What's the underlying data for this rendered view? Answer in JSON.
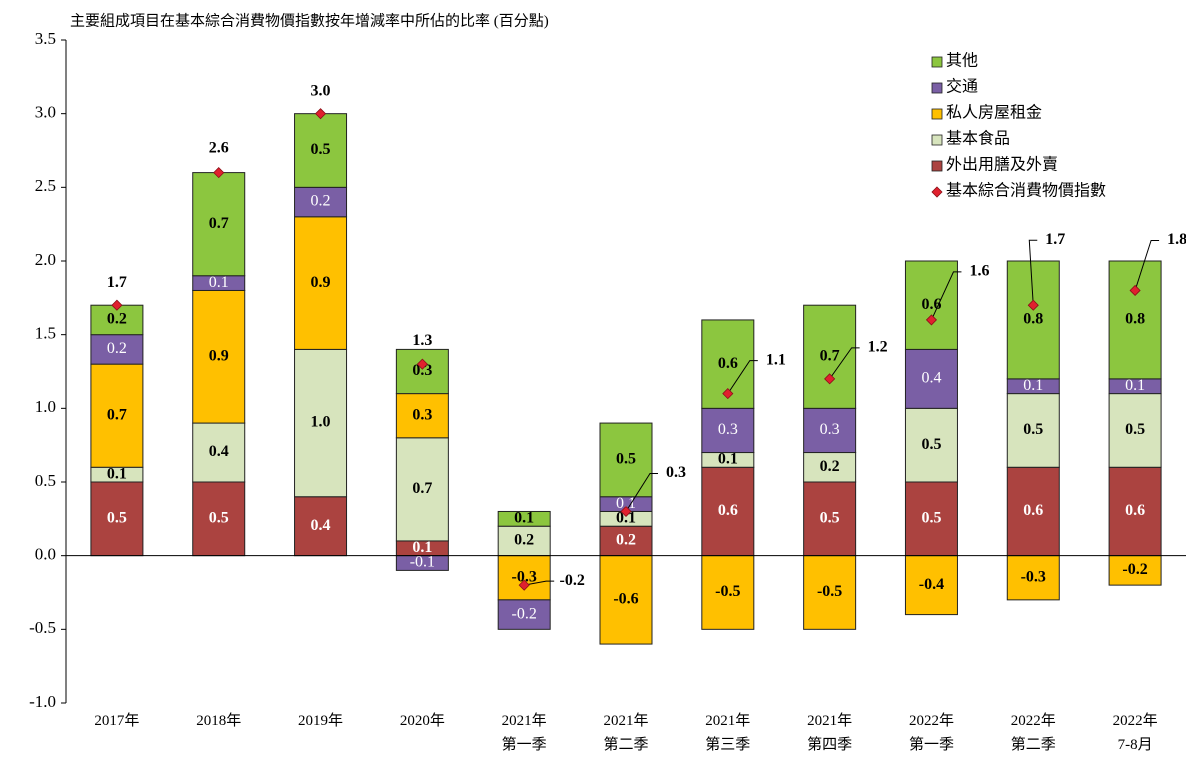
{
  "chart_data": {
    "type": "stacked_bar",
    "title": "主要組成項目在基本綜合消費物價指數按年增減率中所佔的比率 (百分點)",
    "categories": [
      "2017年",
      "2018年",
      "2019年",
      "2020年",
      "2021年\n第一季",
      "2021年\n第二季",
      "2021年\n第三季",
      "2021年\n第四季",
      "2022年\n第一季",
      "2022年\n第二季",
      "2022年\n7-8月"
    ],
    "series": [
      {
        "name": "外出用膳及外賣",
        "color": "#ab4340",
        "label_color": "#ffffff",
        "values": [
          0.5,
          0.5,
          0.4,
          0.1,
          null,
          0.2,
          0.6,
          0.5,
          0.5,
          0.6,
          0.6
        ],
        "value_labels": [
          "0.5",
          "0.5",
          "0.4",
          "0.1",
          null,
          "0.2",
          "0.6",
          "0.5",
          "0.5",
          "0.6",
          "0.6"
        ]
      },
      {
        "name": "基本食品",
        "color": "#d7e4bd",
        "label_color": "#000000",
        "values": [
          0.1,
          0.4,
          1.0,
          0.7,
          0.2,
          0.1,
          0.1,
          0.2,
          0.5,
          0.5,
          0.5
        ],
        "value_labels": [
          "0.1",
          "0.4",
          "1.0",
          "0.7",
          "0.2",
          "0.1",
          "0.1",
          "0.2",
          "0.5",
          "0.5",
          "0.5"
        ]
      },
      {
        "name": "私人房屋租金",
        "color": "#ffc000",
        "label_color": "#000000",
        "values": [
          0.7,
          0.9,
          0.9,
          0.3,
          -0.3,
          -0.6,
          -0.5,
          -0.5,
          -0.4,
          -0.3,
          -0.2
        ],
        "value_labels": [
          "0.7",
          "0.9",
          "0.9",
          "0.3",
          "-0.3",
          "-0.6",
          "-0.5",
          "-0.5",
          "-0.4",
          "-0.3",
          "-0.2"
        ]
      },
      {
        "name": "交通",
        "color": "#7a5fa5",
        "label_color": "#ffffff",
        "values": [
          0.2,
          0.1,
          0.2,
          -0.1,
          -0.2,
          0.1,
          0.3,
          0.3,
          0.4,
          0.1,
          0.1
        ],
        "value_labels": [
          "0.2",
          "0.1",
          "0.2",
          "-0.1",
          "-0.2",
          "0.1",
          "0.3",
          "0.3",
          "0.4",
          "0.1",
          "0.1"
        ]
      },
      {
        "name": "其他",
        "color": "#8cc63f",
        "label_color": "#000000",
        "values": [
          0.2,
          0.7,
          0.5,
          0.3,
          0.1,
          0.5,
          0.6,
          0.7,
          0.6,
          0.8,
          0.8
        ],
        "value_labels": [
          "0.2",
          "0.7",
          "0.5",
          "0.3",
          "0.1",
          "0.5",
          "0.6",
          "0.7",
          "0.6",
          "0.8",
          "0.8"
        ]
      }
    ],
    "line_series": {
      "name": "基本綜合消費物價指數",
      "color": "#e0202e",
      "values": [
        1.7,
        2.6,
        3.0,
        1.3,
        -0.2,
        0.3,
        1.1,
        1.2,
        1.6,
        1.7,
        1.8
      ],
      "value_labels": [
        "1.7",
        "2.6",
        "3.0",
        "1.3",
        "-0.2",
        "0.3",
        "1.1",
        "1.2",
        "1.6",
        "1.7",
        "1.8"
      ]
    },
    "ylim": [
      -1.0,
      3.5
    ],
    "yticks": [
      {
        "value": -1,
        "label": "-1.0"
      },
      -0.5,
      {
        "value": 0,
        "label": "0.0"
      },
      0.5,
      {
        "value": 1,
        "label": "1.0"
      },
      1.5,
      {
        "value": 2,
        "label": "2.0"
      },
      2.5,
      {
        "value": 3,
        "label": "3.0"
      },
      3.5
    ],
    "legend": "top-right"
  }
}
